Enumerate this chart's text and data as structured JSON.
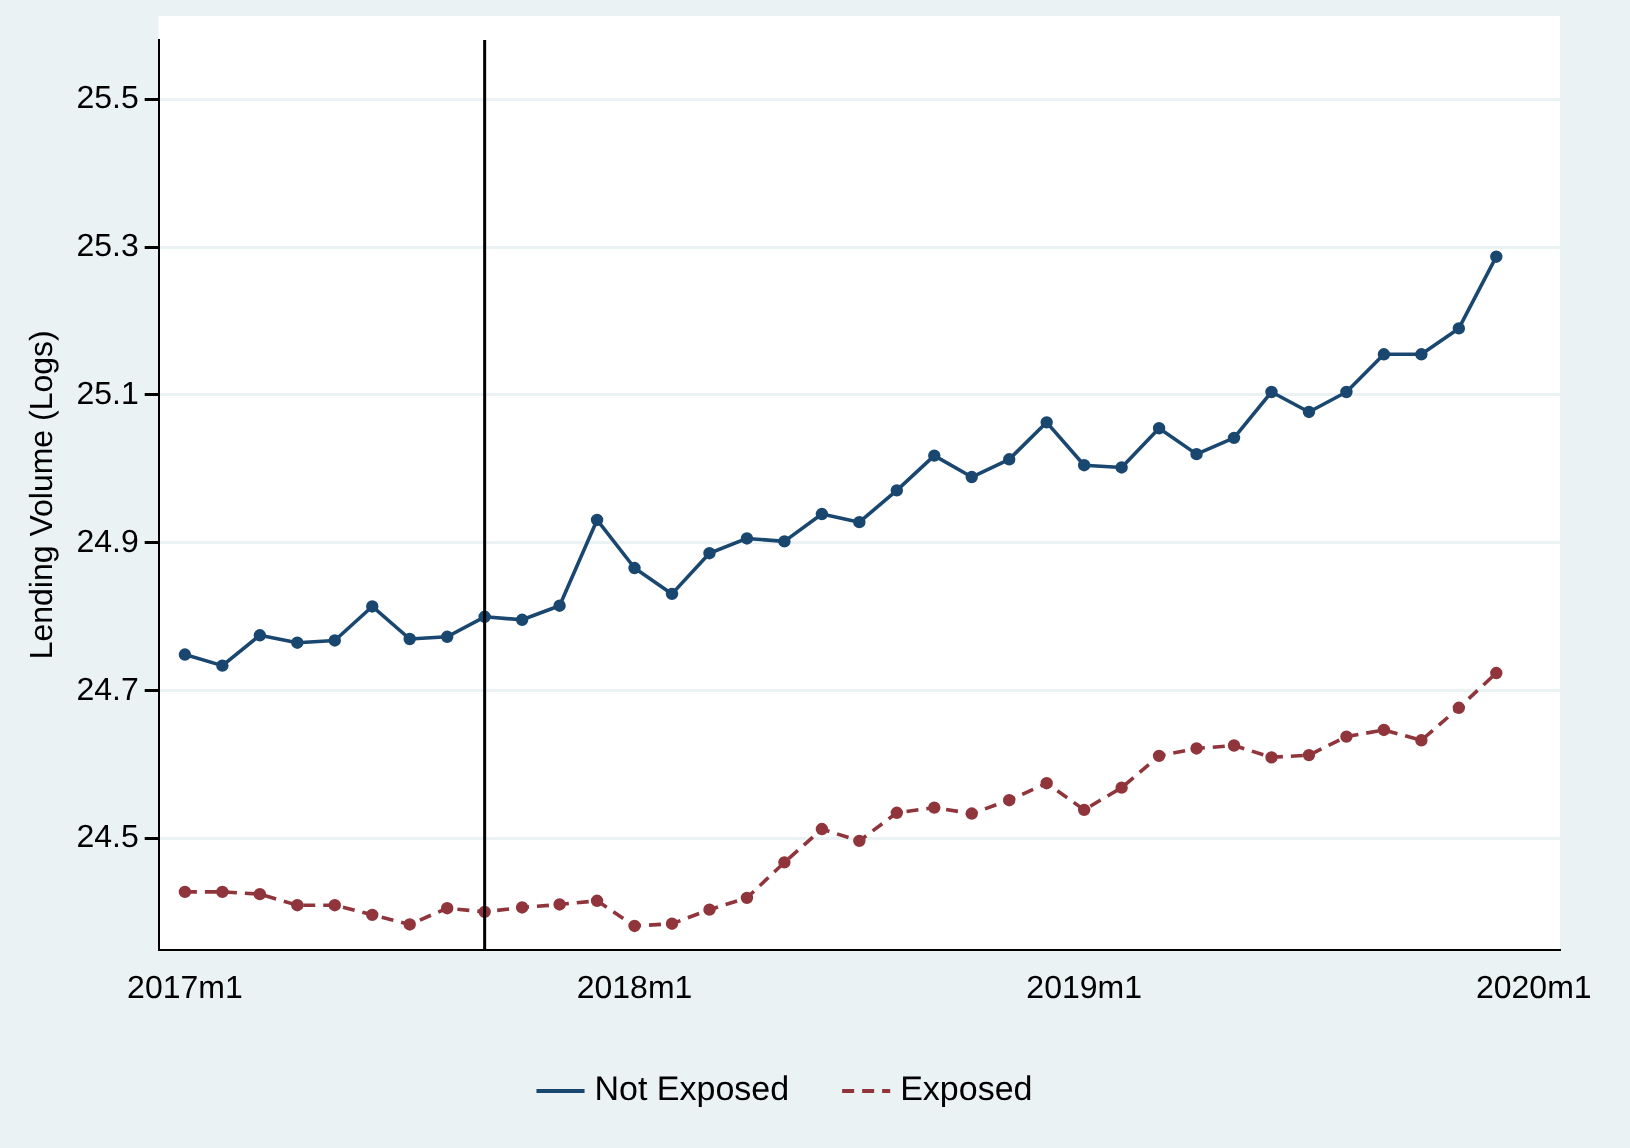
{
  "chart_data": {
    "type": "line",
    "ylabel": "Lending Volume (Logs)",
    "x": [
      "2017-01",
      "2017-02",
      "2017-03",
      "2017-04",
      "2017-05",
      "2017-06",
      "2017-07",
      "2017-08",
      "2017-09",
      "2017-10",
      "2017-11",
      "2017-12",
      "2018-01",
      "2018-02",
      "2018-03",
      "2018-04",
      "2018-05",
      "2018-06",
      "2018-07",
      "2018-08",
      "2018-09",
      "2018-10",
      "2018-11",
      "2018-12",
      "2019-01",
      "2019-02",
      "2019-03",
      "2019-04",
      "2019-05",
      "2019-06",
      "2019-07",
      "2019-08",
      "2019-09",
      "2019-10",
      "2019-11",
      "2019-12"
    ],
    "series": [
      {
        "name": "Not Exposed",
        "color": "#1a476f",
        "line_style": "solid",
        "marker": "circle",
        "values": [
          24.749,
          24.734,
          24.775,
          24.765,
          24.768,
          24.814,
          24.77,
          24.773,
          24.8,
          24.796,
          24.815,
          24.931,
          24.866,
          24.831,
          24.886,
          24.906,
          24.902,
          24.939,
          24.928,
          24.971,
          25.018,
          24.989,
          25.013,
          25.063,
          25.005,
          25.002,
          25.055,
          25.02,
          25.042,
          25.104,
          25.077,
          25.104,
          25.155,
          25.155,
          25.19,
          25.287
        ]
      },
      {
        "name": "Exposed",
        "color": "#90353b",
        "line_style": "dashed",
        "marker": "circle",
        "values": [
          24.428,
          24.428,
          24.425,
          24.41,
          24.41,
          24.397,
          24.384,
          24.406,
          24.401,
          24.407,
          24.411,
          24.416,
          24.382,
          24.385,
          24.404,
          24.42,
          24.468,
          24.513,
          24.497,
          24.535,
          24.542,
          24.534,
          24.552,
          24.575,
          24.539,
          24.569,
          24.612,
          24.622,
          24.626,
          24.61,
          24.613,
          24.638,
          24.647,
          24.633,
          24.677,
          24.724
        ]
      }
    ],
    "xlim": [
      "2016-12-10",
      "2020-01-22"
    ],
    "xticks": [
      {
        "value": "2017-01",
        "label": "2017m1"
      },
      {
        "value": "2018-01",
        "label": "2018m1"
      },
      {
        "value": "2019-01",
        "label": "2019m1"
      },
      {
        "value": "2020-01",
        "label": "2020m1"
      }
    ],
    "ylim": [
      24.35,
      25.58
    ],
    "yticks": [
      24.5,
      24.7,
      24.9,
      25.1,
      25.3,
      25.5
    ],
    "ref_lines": [
      {
        "axis": "x",
        "value": "2017-09",
        "color": "#000000"
      }
    ],
    "grid": "y",
    "legend": "bottom"
  }
}
